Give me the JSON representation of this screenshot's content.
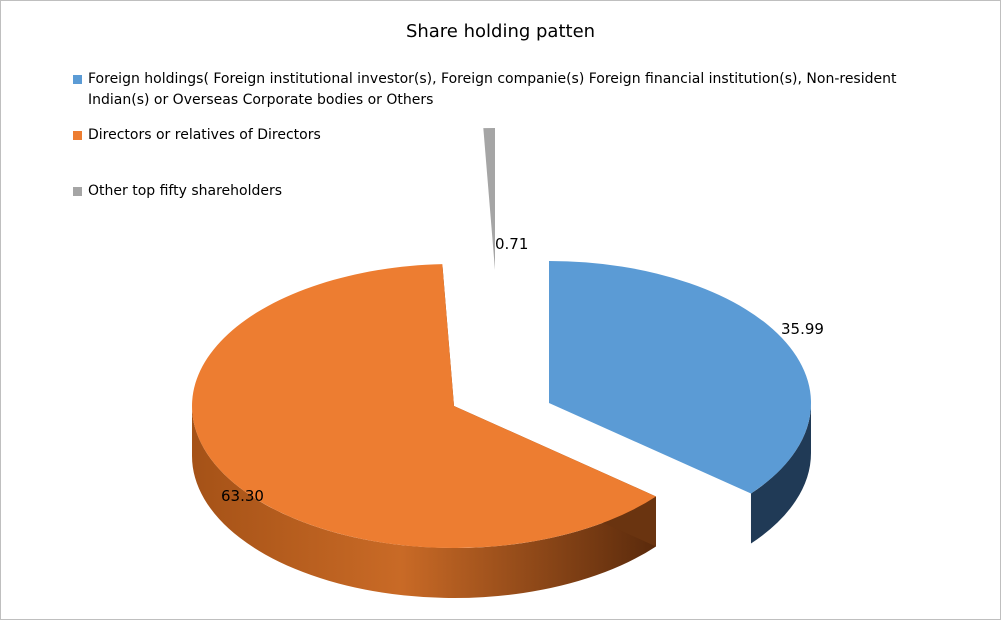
{
  "chart_data": {
    "type": "pie",
    "style": "3d-exploded",
    "title": "Share holding patten",
    "legend_position": "top",
    "categories": [
      "Foreign holdings( Foreign institutional investor(s), Foreign companie(s) Foreign financial institution(s),  Non-resident Indian(s) or Overseas Corporate bodies or Others",
      "Directors or relatives of Directors",
      "Other top fifty shareholders"
    ],
    "values": [
      35.99,
      63.3,
      0.71
    ],
    "labels": [
      "35.99",
      "63.30",
      "0.71"
    ],
    "colors": [
      "#5b9bd5",
      "#ed7d31",
      "#a5a5a5"
    ],
    "side_colors": [
      "#203a56",
      "#6a3410",
      "#4a4a4a"
    ]
  }
}
